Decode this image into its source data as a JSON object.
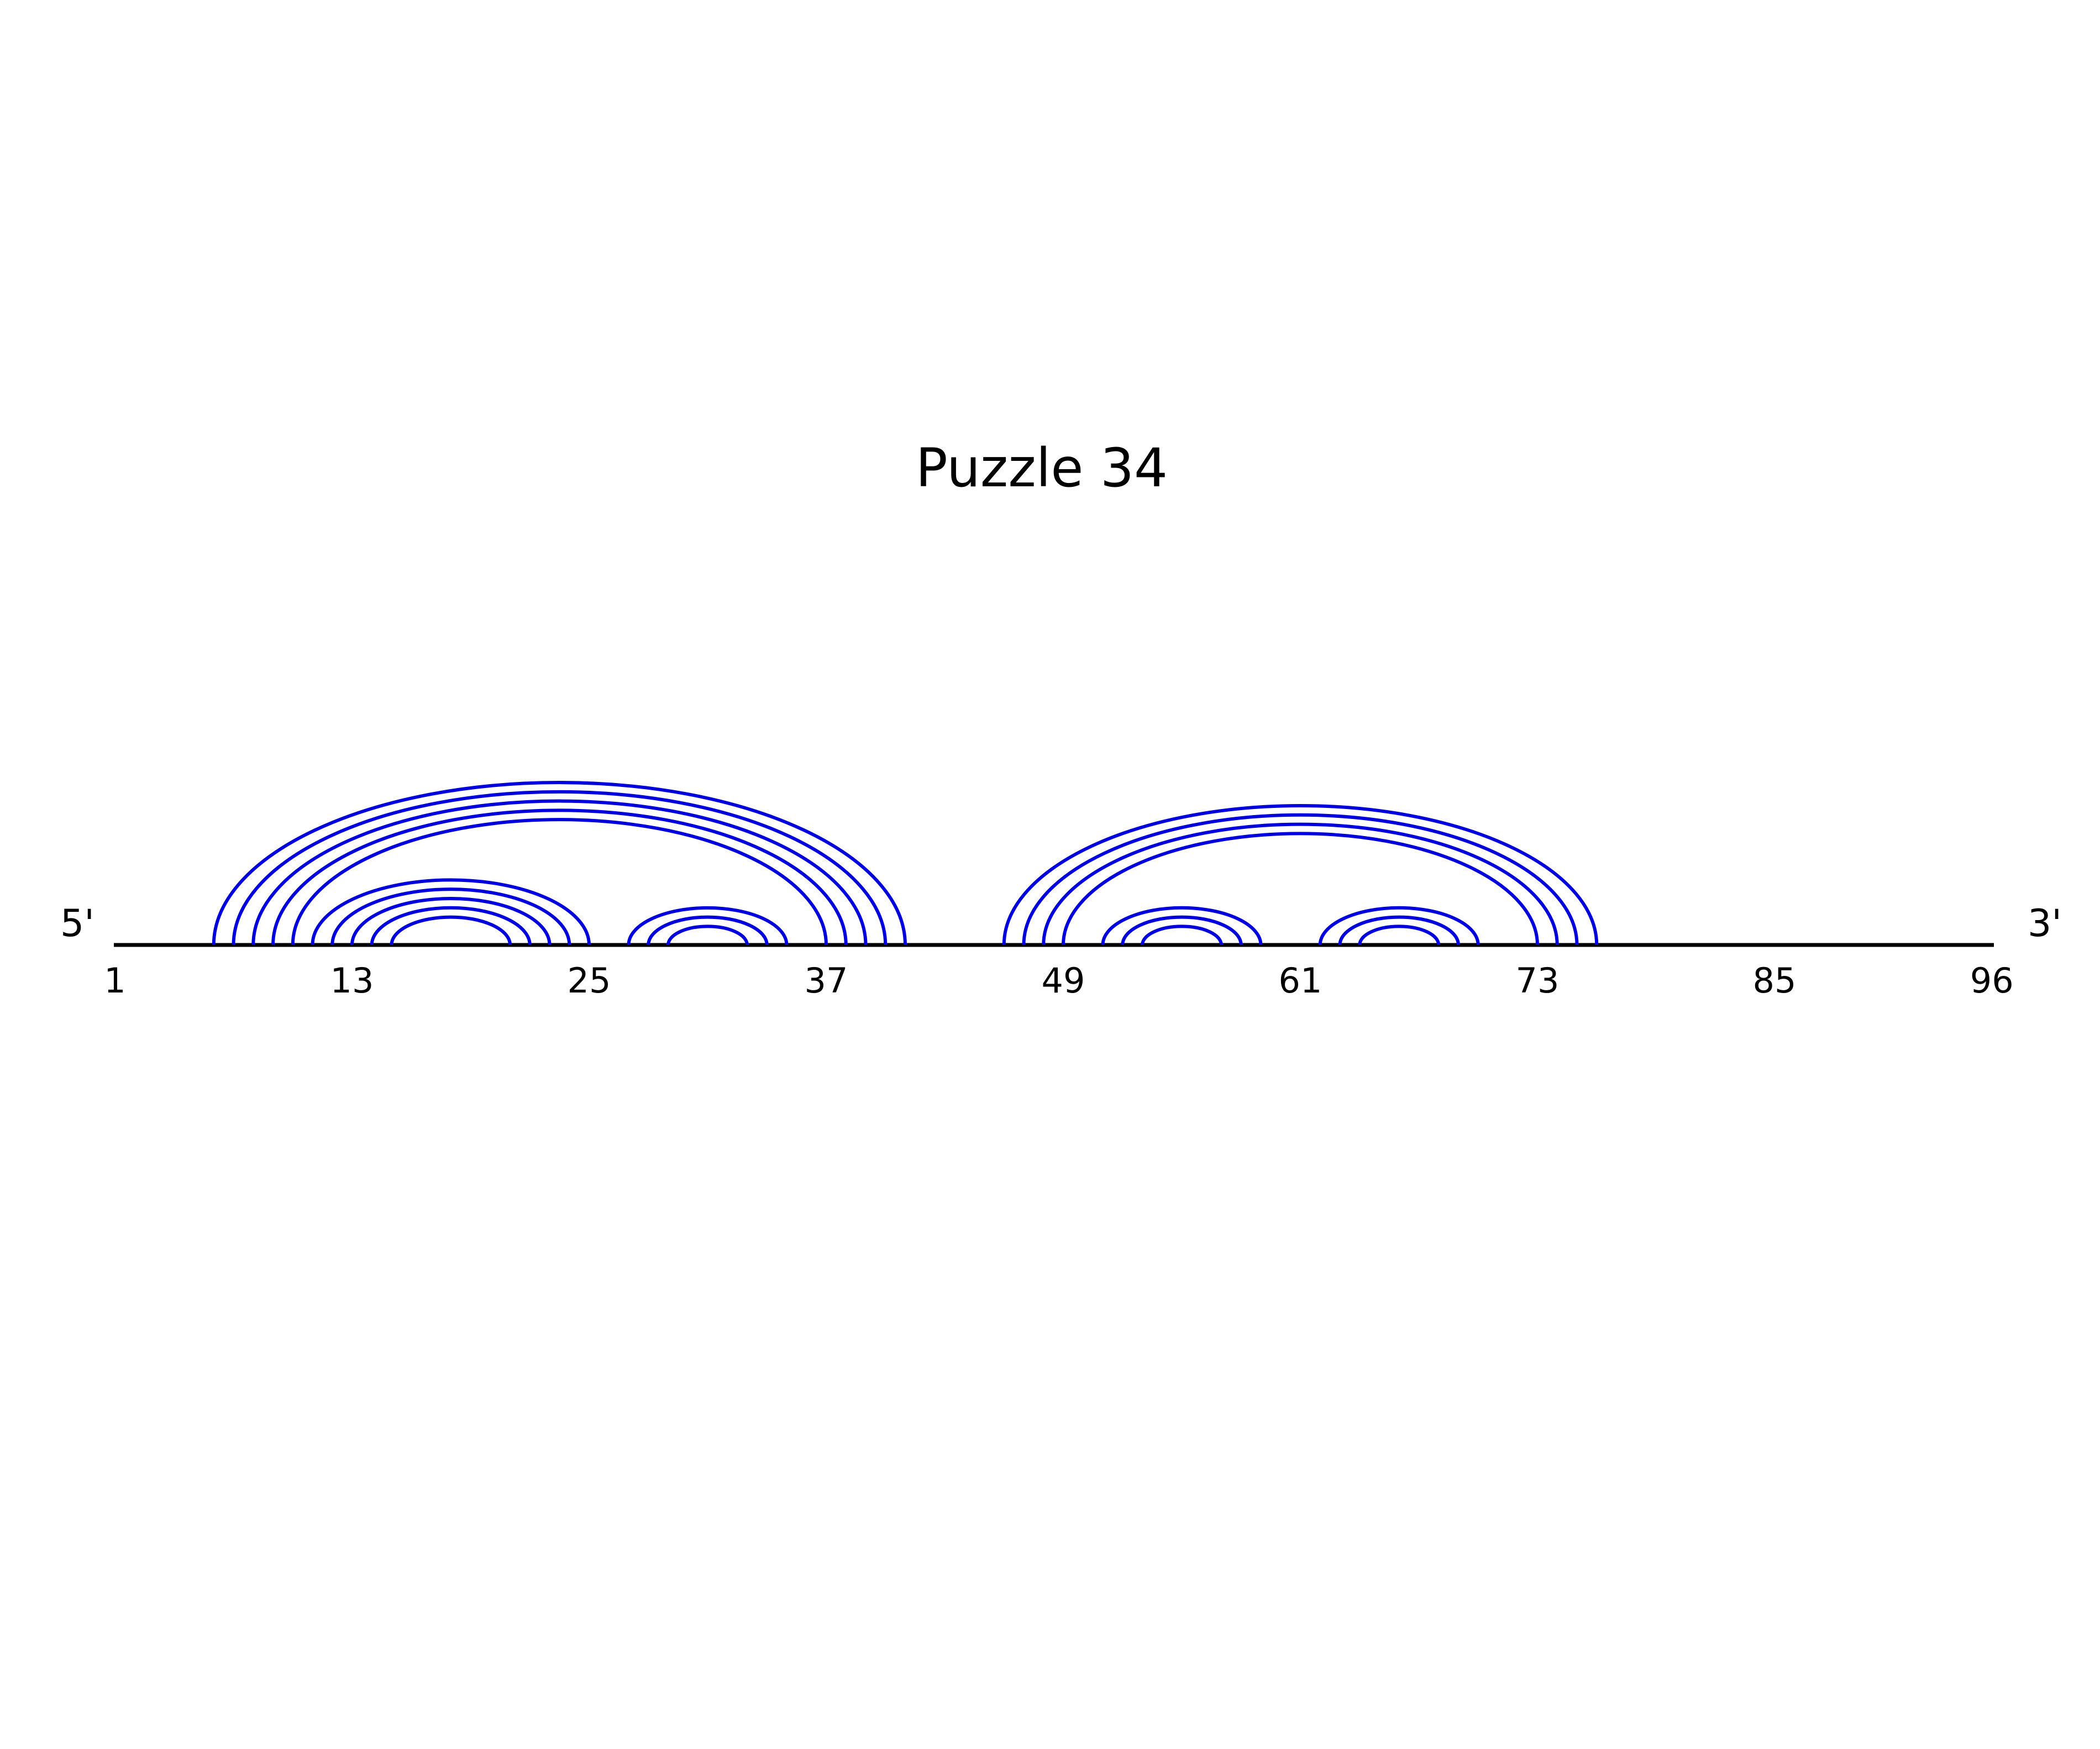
{
  "title": "Puzzle 34",
  "five_prime_label": "5'",
  "three_prime_label": "3'",
  "colors": {
    "backbone": "#000000",
    "arc": "#0000dd",
    "background": "#ffffff"
  },
  "sequence_length": 96,
  "tick_labels": [
    "1",
    "13",
    "25",
    "37",
    "49",
    "61",
    "73",
    "85",
    "96"
  ],
  "tick_positions": [
    1,
    13,
    25,
    37,
    49,
    61,
    73,
    85,
    96
  ],
  "base_pairs": [
    [
      6,
      41
    ],
    [
      7,
      40
    ],
    [
      8,
      39
    ],
    [
      9,
      38
    ],
    [
      10,
      37
    ],
    [
      11,
      25
    ],
    [
      12,
      24
    ],
    [
      13,
      23
    ],
    [
      14,
      22
    ],
    [
      15,
      21
    ],
    [
      27,
      35
    ],
    [
      28,
      34
    ],
    [
      29,
      33
    ],
    [
      46,
      76
    ],
    [
      47,
      75
    ],
    [
      48,
      74
    ],
    [
      49,
      73
    ],
    [
      51,
      59
    ],
    [
      52,
      58
    ],
    [
      53,
      57
    ],
    [
      62,
      70
    ],
    [
      63,
      69
    ],
    [
      64,
      68
    ]
  ]
}
